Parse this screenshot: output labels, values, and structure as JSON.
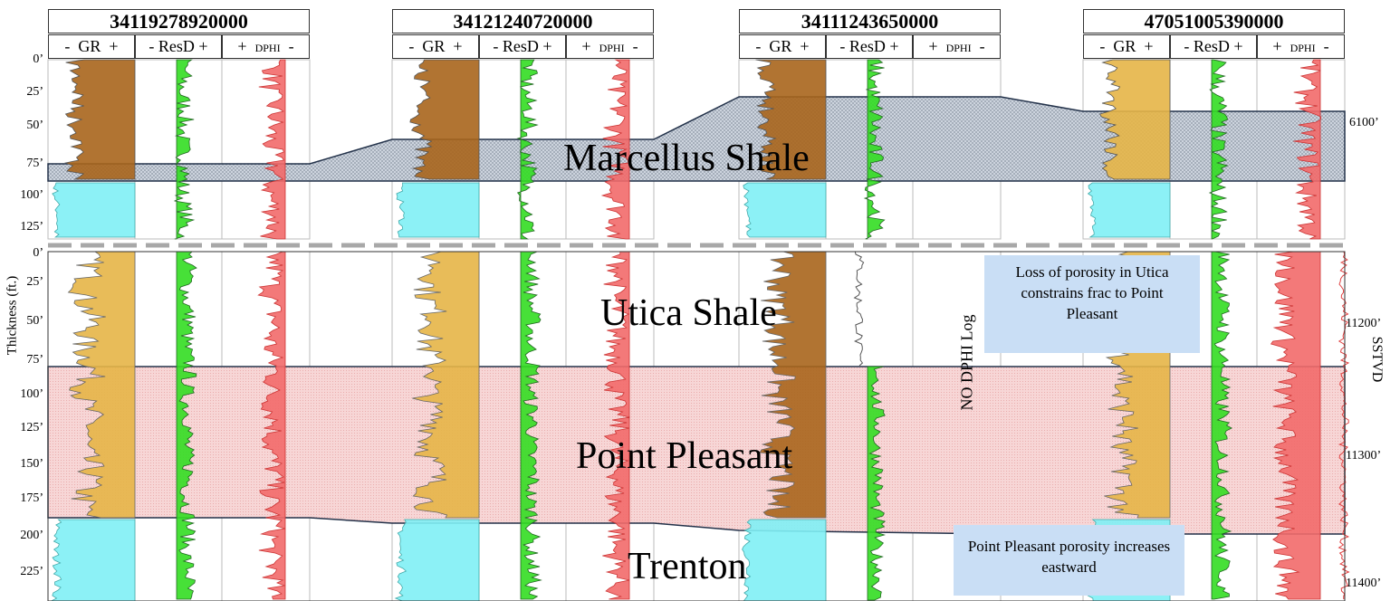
{
  "wells": [
    {
      "api": "34119278920000",
      "tracks": [
        "GR",
        "ResD",
        "DPHI"
      ],
      "signs": [
        "-",
        "+",
        "-",
        "+",
        "+",
        "-"
      ]
    },
    {
      "api": "34121240720000",
      "tracks": [
        "GR",
        "ResD",
        "DPHI"
      ],
      "signs": [
        "-",
        "+",
        "-",
        "+",
        "+",
        "-"
      ]
    },
    {
      "api": "34111243650000",
      "tracks": [
        "GR",
        "ResD",
        "DPHI"
      ],
      "signs": [
        "-",
        "+",
        "-",
        "+",
        "+",
        "-"
      ]
    },
    {
      "api": "47051005390000",
      "tracks": [
        "GR",
        "ResD",
        "DPHI"
      ],
      "signs": [
        "-",
        "+",
        "-",
        "+",
        "+",
        "-"
      ]
    }
  ],
  "upper_ticks": [
    "0’",
    "25’",
    "50’",
    "75’",
    "100’",
    "125’"
  ],
  "lower_ticks": [
    "0’",
    "25’",
    "50’",
    "75’",
    "100’",
    "125’",
    "150’",
    "175’",
    "200’",
    "225’"
  ],
  "y_axis_title": "Thickness (ft.)",
  "right_ticks": [
    "6100’",
    "11200’",
    "11300’",
    "11400’"
  ],
  "right_axis_title": "SSTVD",
  "formations": {
    "marcellus": "Marcellus Shale",
    "utica": "Utica Shale",
    "point_pleasant": "Point Pleasant",
    "trenton": "Trenton"
  },
  "annotations": {
    "loss_porosity": "Loss of porosity in Utica constrains frac to Point Pleasant",
    "no_dphi": "NO DPHI Log",
    "pp_porosity": "Point Pleasant porosity increases eastward"
  },
  "colors": {
    "gr_shale": "#a8651c",
    "gr_mid": "#e5b547",
    "gr_clean": "#7ff0f5",
    "resd": "#33dd22",
    "dphi": "#f26a6a",
    "marcellus_fill": "#cdd4de",
    "pp_fill": "#f7d6d6",
    "note_bg": "#c9def5"
  }
}
